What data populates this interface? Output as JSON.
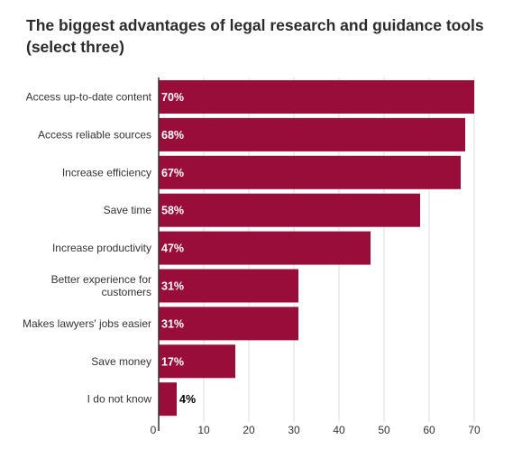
{
  "chart_data": {
    "type": "bar",
    "orientation": "horizontal",
    "title": "The biggest advantages of legal research and guidance tools (select three)",
    "categories": [
      "Access up-to-date content",
      "Access reliable sources",
      "Increase efficiency",
      "Save time",
      "Increase productivity",
      "Better experience for customers",
      "Makes lawyers' jobs easier",
      "Save money",
      "I do not know"
    ],
    "category_lines": [
      [
        "Access up-to-date content"
      ],
      [
        "Access reliable sources"
      ],
      [
        "Increase efficiency"
      ],
      [
        "Save time"
      ],
      [
        "Increase productivity"
      ],
      [
        "Better experience for",
        "customers"
      ],
      [
        "Makes lawyers' jobs easier"
      ],
      [
        "Save money"
      ],
      [
        "I do not know"
      ]
    ],
    "values": [
      70,
      68,
      67,
      58,
      47,
      31,
      31,
      17,
      4
    ],
    "data_labels": [
      "70%",
      "68%",
      "67%",
      "58%",
      "47%",
      "31%",
      "31%",
      "17%",
      "4%"
    ],
    "xlim": [
      0,
      70
    ],
    "xticks": [
      0,
      10,
      20,
      30,
      40,
      50,
      60,
      70
    ],
    "xlabel": "",
    "ylabel": "",
    "grid": true,
    "legend": "none",
    "colors": {
      "bar": "#990d3b",
      "label_inside": "#ffffff",
      "label_outside": "#000000",
      "grid": "#dddddd",
      "axis": "#333333"
    }
  }
}
